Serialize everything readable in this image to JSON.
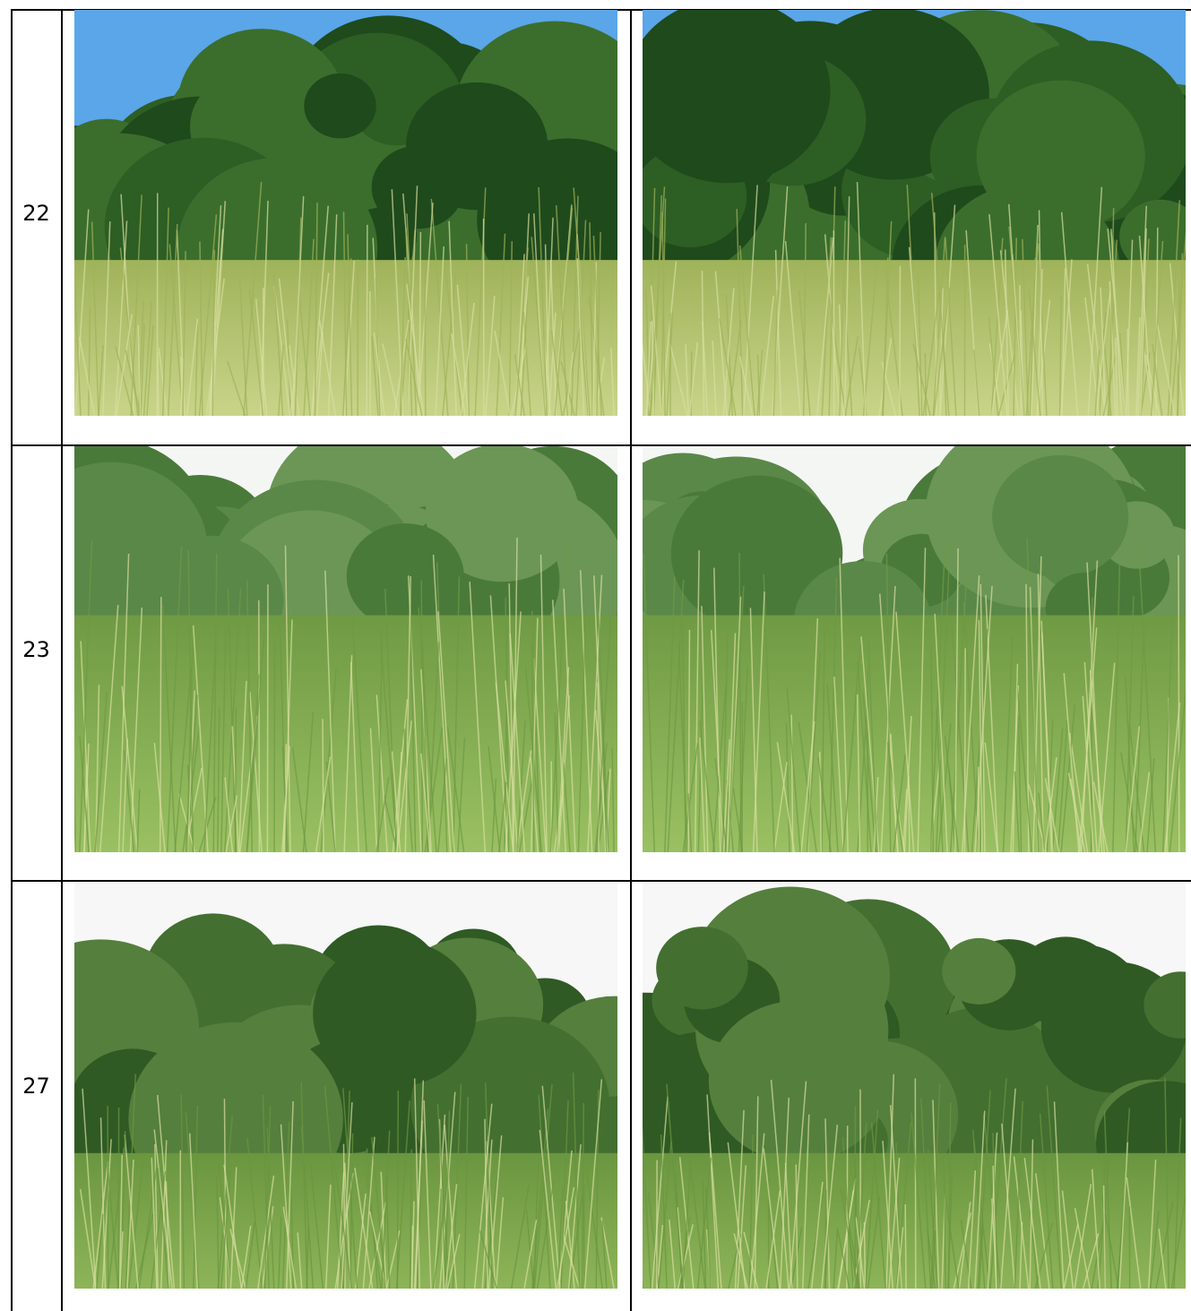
{
  "table": {
    "rows": [
      {
        "label": "22"
      },
      {
        "label": "23"
      },
      {
        "label": "27"
      }
    ]
  }
}
